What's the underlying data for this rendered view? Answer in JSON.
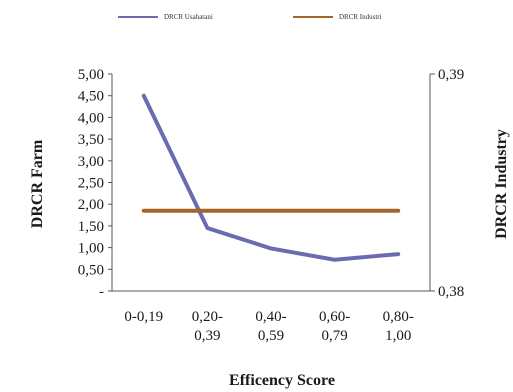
{
  "chart_data": {
    "type": "line",
    "categories": [
      "0-0,19",
      "0,20-0,39",
      "0,40-0,59",
      "0,60-0,79",
      "0,80-1,00"
    ],
    "category_tick_lines": [
      [
        "0-0,19"
      ],
      [
        "0,20-",
        "0,39"
      ],
      [
        "0,40-",
        "0,59"
      ],
      [
        "0,60-",
        "0,79"
      ],
      [
        "0,80-",
        "1,00"
      ]
    ],
    "xlabel": "Efficency Score",
    "ylabel": "DRCR Farm",
    "y2label": "DRCR Industry",
    "ylim": [
      0,
      5
    ],
    "y_ticks": [
      "-",
      "0,50",
      "1,00",
      "1,50",
      "2,00",
      "2,50",
      "3,00",
      "3,50",
      "4,00",
      "4,50",
      "5,00"
    ],
    "y2lim": [
      0.38,
      0.39
    ],
    "y2_ticks": [
      "0,38",
      "0,39"
    ],
    "legend_position": "top",
    "series": [
      {
        "name": "DRCR Usahatani",
        "axis": "left",
        "color": "#6b6bb0",
        "values": [
          4.5,
          1.45,
          0.98,
          0.72,
          0.85
        ]
      },
      {
        "name": "DRCR Industri",
        "axis": "right",
        "color": "#a4652a",
        "values": [
          0.3837,
          0.3837,
          0.3837,
          0.3837,
          0.3837
        ]
      }
    ]
  }
}
